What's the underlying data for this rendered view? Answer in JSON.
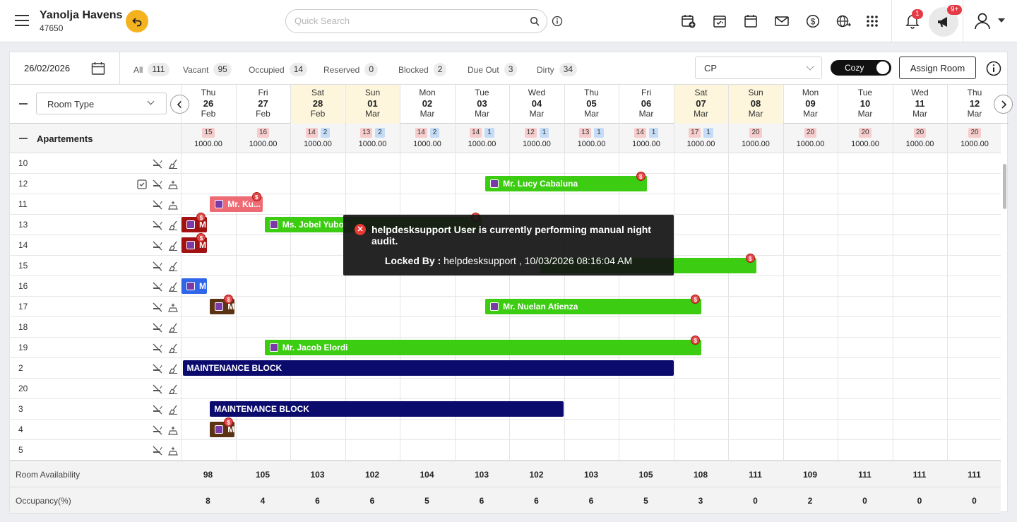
{
  "header": {
    "property_name": "Yanolja Havens",
    "property_id": "47650",
    "search_placeholder": "Quick Search",
    "notification_count": "1",
    "announcement_count": "9+"
  },
  "filters": {
    "date": "26/02/2026",
    "stats": [
      {
        "label": "All",
        "count": "111"
      },
      {
        "label": "Vacant",
        "count": "95"
      },
      {
        "label": "Occupied",
        "count": "14"
      },
      {
        "label": "Reserved",
        "count": "0"
      },
      {
        "label": "Blocked",
        "count": "2"
      },
      {
        "label": "Due Out",
        "count": "3"
      },
      {
        "label": "Dirty",
        "count": "34"
      }
    ],
    "rate_plan": "CP",
    "view_toggle": "Cozy",
    "assign_button": "Assign Room"
  },
  "grid": {
    "room_type_select": "Room Type",
    "group_label": "Apartements",
    "dates": [
      {
        "dow": "Thu",
        "day": "26",
        "mon": "Feb",
        "weekend": false
      },
      {
        "dow": "Fri",
        "day": "27",
        "mon": "Feb",
        "weekend": false
      },
      {
        "dow": "Sat",
        "day": "28",
        "mon": "Feb",
        "weekend": true
      },
      {
        "dow": "Sun",
        "day": "01",
        "mon": "Mar",
        "weekend": true
      },
      {
        "dow": "Mon",
        "day": "02",
        "mon": "Mar",
        "weekend": false
      },
      {
        "dow": "Tue",
        "day": "03",
        "mon": "Mar",
        "weekend": false
      },
      {
        "dow": "Wed",
        "day": "04",
        "mon": "Mar",
        "weekend": false
      },
      {
        "dow": "Thu",
        "day": "05",
        "mon": "Mar",
        "weekend": false
      },
      {
        "dow": "Fri",
        "day": "06",
        "mon": "Mar",
        "weekend": false
      },
      {
        "dow": "Sat",
        "day": "07",
        "mon": "Mar",
        "weekend": true
      },
      {
        "dow": "Sun",
        "day": "08",
        "mon": "Mar",
        "weekend": true
      },
      {
        "dow": "Mon",
        "day": "09",
        "mon": "Mar",
        "weekend": false
      },
      {
        "dow": "Tue",
        "day": "10",
        "mon": "Mar",
        "weekend": false
      },
      {
        "dow": "Wed",
        "day": "11",
        "mon": "Mar",
        "weekend": false
      },
      {
        "dow": "Thu",
        "day": "12",
        "mon": "Mar",
        "weekend": false
      }
    ],
    "group_cells": [
      {
        "avail": "15",
        "blocked": "",
        "price": "1000.00"
      },
      {
        "avail": "16",
        "blocked": "",
        "price": "1000.00"
      },
      {
        "avail": "14",
        "blocked": "2",
        "price": "1000.00"
      },
      {
        "avail": "13",
        "blocked": "2",
        "price": "1000.00"
      },
      {
        "avail": "14",
        "blocked": "2",
        "price": "1000.00"
      },
      {
        "avail": "14",
        "blocked": "1",
        "price": "1000.00"
      },
      {
        "avail": "12",
        "blocked": "1",
        "price": "1000.00"
      },
      {
        "avail": "13",
        "blocked": "1",
        "price": "1000.00"
      },
      {
        "avail": "14",
        "blocked": "1",
        "price": "1000.00"
      },
      {
        "avail": "17",
        "blocked": "1",
        "price": "1000.00"
      },
      {
        "avail": "20",
        "blocked": "",
        "price": "1000.00"
      },
      {
        "avail": "20",
        "blocked": "",
        "price": "1000.00"
      },
      {
        "avail": "20",
        "blocked": "",
        "price": "1000.00"
      },
      {
        "avail": "20",
        "blocked": "",
        "price": "1000.00"
      },
      {
        "avail": "20",
        "blocked": "",
        "price": "1000.00"
      }
    ],
    "rooms": [
      "10",
      "12",
      "11",
      "13",
      "14",
      "15",
      "16",
      "17",
      "18",
      "19",
      "2",
      "20",
      "3",
      "4",
      "5"
    ],
    "bookings": [
      {
        "room": 1,
        "start": 5.55,
        "end": 8.5,
        "label": "Mr. Lucy Cabaluna",
        "color": "#3ccc12",
        "icon": true,
        "dollar": true
      },
      {
        "room": 2,
        "start": 0.52,
        "end": 1.48,
        "label": "Mr. Ku...",
        "color": "#ef6b74",
        "icon": true,
        "dollar": true
      },
      {
        "room": 3,
        "start": 0.0,
        "end": 0.47,
        "label": "M",
        "color": "#a31212",
        "icon": true,
        "dollar": true
      },
      {
        "room": 3,
        "start": 1.52,
        "end": 5.48,
        "label": "Ms. Jobel Yubos",
        "color": "#3ccc12",
        "icon": true,
        "dollar": true
      },
      {
        "room": 4,
        "start": 0.0,
        "end": 0.47,
        "label": "M",
        "color": "#a31212",
        "icon": true,
        "dollar": true
      },
      {
        "room": 5,
        "start": 6.55,
        "end": 10.5,
        "label": "",
        "color": "#3ccc12",
        "icon": false,
        "dollar": true
      },
      {
        "room": 6,
        "start": 0.0,
        "end": 0.47,
        "label": "M",
        "color": "#2f67e8",
        "icon": true,
        "dollar": false
      },
      {
        "room": 7,
        "start": 0.52,
        "end": 0.97,
        "label": "M",
        "color": "#5c3312",
        "icon": true,
        "dollar": true
      },
      {
        "room": 7,
        "start": 5.55,
        "end": 9.5,
        "label": "Mr. Nuelan Atienza",
        "color": "#3ccc12",
        "icon": true,
        "dollar": true
      },
      {
        "room": 9,
        "start": 1.52,
        "end": 9.5,
        "label": "Mr. Jacob Elordi",
        "color": "#3ccc12",
        "icon": true,
        "dollar": true
      },
      {
        "room": 10,
        "start": 0.02,
        "end": 9.0,
        "label": "MAINTENANCE BLOCK",
        "color": "#0b0b6e",
        "icon": false,
        "dollar": false
      },
      {
        "room": 12,
        "start": 0.52,
        "end": 6.98,
        "label": "MAINTENANCE BLOCK",
        "color": "#0b0b6e",
        "icon": false,
        "dollar": false
      },
      {
        "room": 13,
        "start": 0.52,
        "end": 0.97,
        "label": "M",
        "color": "#5c3312",
        "icon": true,
        "dollar": true
      }
    ],
    "footer": {
      "availability_label": "Room Availability",
      "availability": [
        "98",
        "105",
        "103",
        "102",
        "104",
        "103",
        "102",
        "103",
        "105",
        "108",
        "111",
        "109",
        "111",
        "111",
        "111"
      ],
      "occupancy_label": "Occupancy(%)",
      "occupancy": [
        "8",
        "4",
        "6",
        "6",
        "5",
        "6",
        "6",
        "6",
        "5",
        "3",
        "0",
        "2",
        "0",
        "0",
        "0"
      ]
    }
  },
  "toast": {
    "message": "helpdesksupport User is currently performing manual night audit.",
    "locked_by_label": "Locked By :",
    "locked_by_value": "helpdesksupport , 10/03/2026 08:16:04 AM"
  }
}
